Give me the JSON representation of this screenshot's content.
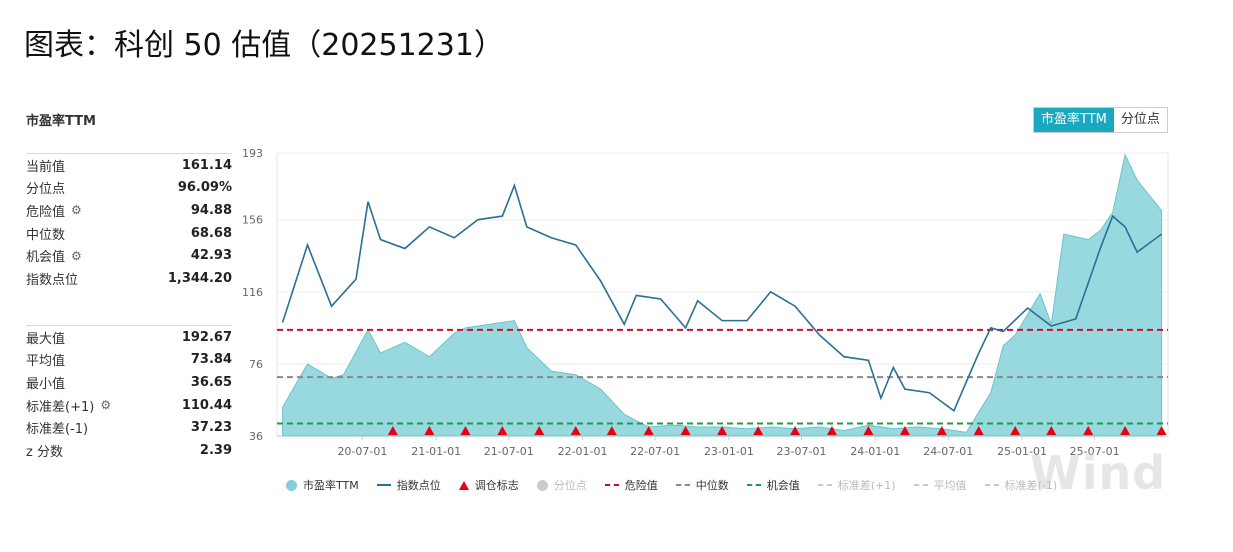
{
  "page_title": "图表：科创 50 估值（20251231）",
  "panel_title": "市盈率TTM",
  "toggle": {
    "active": "市盈率TTM",
    "inactive": "分位点"
  },
  "stats_top": [
    {
      "label": "当前值",
      "value": "161.14",
      "gear": false
    },
    {
      "label": "分位点",
      "value": "96.09%",
      "gear": false
    },
    {
      "label": "危险值",
      "value": "94.88",
      "gear": true
    },
    {
      "label": "中位数",
      "value": "68.68",
      "gear": false
    },
    {
      "label": "机会值",
      "value": "42.93",
      "gear": true
    },
    {
      "label": "指数点位",
      "value": "1,344.20",
      "gear": false
    }
  ],
  "stats_bottom": [
    {
      "label": "最大值",
      "value": "192.67",
      "gear": false
    },
    {
      "label": "平均值",
      "value": "73.84",
      "gear": false
    },
    {
      "label": "最小值",
      "value": "36.65",
      "gear": false
    },
    {
      "label": "标准差(+1)",
      "value": "110.44",
      "gear": true
    },
    {
      "label": "标准差(-1)",
      "value": "37.23",
      "gear": false
    },
    {
      "label": "z 分数",
      "value": "2.39",
      "gear": false
    }
  ],
  "watermark": "Wind",
  "legend": [
    {
      "label": "市盈率TTM",
      "kind": "dot",
      "color": "#7ecfd8",
      "faded": false
    },
    {
      "label": "指数点位",
      "kind": "line",
      "color": "#2a6f97",
      "faded": false
    },
    {
      "label": "调仓标志",
      "kind": "tri",
      "color": "#e60012",
      "faded": false
    },
    {
      "label": "分位点",
      "kind": "dot",
      "color": "#cccccc",
      "faded": true
    },
    {
      "label": "危险值",
      "kind": "dash",
      "color": "#c8102e",
      "faded": false
    },
    {
      "label": "中位数",
      "kind": "dash",
      "color": "#888888",
      "faded": false
    },
    {
      "label": "机会值",
      "kind": "dash",
      "color": "#1e9a4a",
      "faded": false
    },
    {
      "label": "标准差(+1)",
      "kind": "dash",
      "color": "#cccccc",
      "faded": true
    },
    {
      "label": "平均值",
      "kind": "dash",
      "color": "#cccccc",
      "faded": true
    },
    {
      "label": "标准差(-1)",
      "kind": "dash",
      "color": "#cccccc",
      "faded": true
    }
  ],
  "chart_data": {
    "type": "area",
    "x_ticks": [
      "20-07-01",
      "21-01-01",
      "21-07-01",
      "22-01-01",
      "22-07-01",
      "23-01-01",
      "23-07-01",
      "24-01-01",
      "24-07-01",
      "25-01-01",
      "25-07-01"
    ],
    "y_left_ticks": [
      "193",
      "156",
      "116",
      "76",
      "36"
    ],
    "y_left_range": [
      36,
      193
    ],
    "colors": {
      "pe_fill": "#7ecfd8",
      "index_line": "#2a6f97",
      "danger": "#c8102e",
      "median": "#888888",
      "opportunity": "#1e9a4a",
      "rebalance": "#e60012"
    },
    "reference_lines": {
      "danger": 94.88,
      "median": 68.68,
      "opportunity": 42.93
    },
    "series": [
      {
        "name": "市盈率TTM",
        "x": [
          "2019-12",
          "2020-02",
          "2020-04",
          "2020-05",
          "2020-07",
          "2020-08",
          "2020-10",
          "2020-12",
          "2021-02",
          "2021-03",
          "2021-05",
          "2021-07",
          "2021-08",
          "2021-10",
          "2021-12",
          "2022-02",
          "2022-04",
          "2022-06",
          "2022-08",
          "2022-10",
          "2022-12",
          "2023-02",
          "2023-04",
          "2023-06",
          "2023-08",
          "2023-10",
          "2023-12",
          "2024-02",
          "2024-04",
          "2024-06",
          "2024-08",
          "2024-10",
          "2024-11",
          "2024-12",
          "2025-02",
          "2025-03",
          "2025-04",
          "2025-06",
          "2025-07",
          "2025-08",
          "2025-09",
          "2025-10",
          "2025-12"
        ],
        "values": [
          52,
          76,
          68,
          70,
          95,
          82,
          88,
          80,
          93,
          96,
          98,
          100,
          85,
          72,
          70,
          62,
          48,
          41,
          42,
          41,
          41,
          40,
          41,
          40,
          41,
          39,
          42,
          40,
          41,
          40,
          38,
          60,
          86,
          92,
          115,
          98,
          148,
          145,
          150,
          160,
          192,
          178,
          161
        ]
      },
      {
        "name": "指数点位",
        "x": [
          "2019-12",
          "2020-02",
          "2020-04",
          "2020-06",
          "2020-07",
          "2020-08",
          "2020-10",
          "2020-12",
          "2021-02",
          "2021-04",
          "2021-06",
          "2021-07",
          "2021-08",
          "2021-10",
          "2021-12",
          "2022-02",
          "2022-04",
          "2022-05",
          "2022-07",
          "2022-09",
          "2022-10",
          "2022-12",
          "2023-02",
          "2023-04",
          "2023-06",
          "2023-08",
          "2023-10",
          "2023-12",
          "2024-01",
          "2024-02",
          "2024-03",
          "2024-05",
          "2024-07",
          "2024-09",
          "2024-10",
          "2024-11",
          "2025-01",
          "2025-03",
          "2025-05",
          "2025-07",
          "2025-08",
          "2025-09",
          "2025-10",
          "2025-12"
        ],
        "values": [
          99,
          142,
          108,
          123,
          166,
          145,
          140,
          152,
          146,
          156,
          158,
          175,
          152,
          146,
          142,
          122,
          98,
          114,
          112,
          96,
          111,
          100,
          100,
          116,
          108,
          92,
          80,
          78,
          57,
          74,
          62,
          60,
          50,
          82,
          96,
          94,
          107,
          97,
          101,
          140,
          158,
          152,
          138,
          148
        ]
      }
    ],
    "rebalance_markers": [
      "2020-09",
      "2020-12",
      "2021-03",
      "2021-06",
      "2021-09",
      "2021-12",
      "2022-03",
      "2022-06",
      "2022-09",
      "2022-12",
      "2023-03",
      "2023-06",
      "2023-09",
      "2023-12",
      "2024-03",
      "2024-06",
      "2024-09",
      "2024-12",
      "2025-03",
      "2025-06",
      "2025-09",
      "2025-12"
    ]
  }
}
